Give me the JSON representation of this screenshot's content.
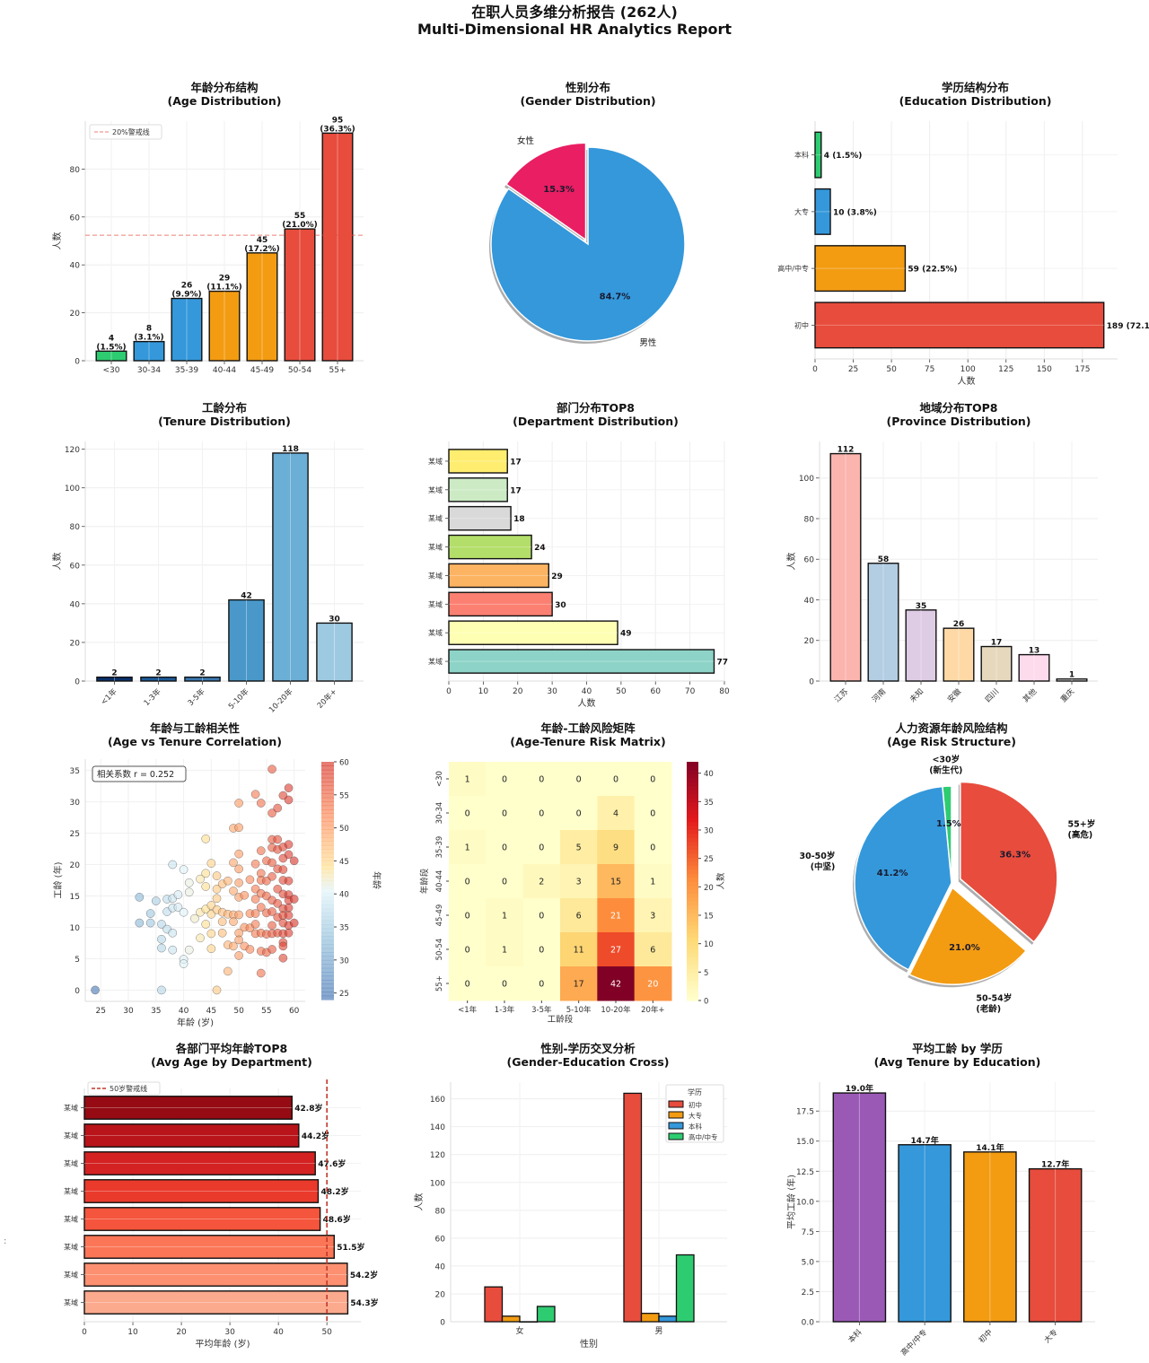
{
  "suptitle": {
    "line1": "在职人员多维分析报告 (262人)",
    "line2": "Multi-Dimensional HR Analytics Report"
  },
  "stray_mark": ":",
  "chart_data": [
    {
      "id": "age",
      "type": "bar",
      "title": "年龄分布结构",
      "subtitle": "(Age Distribution)",
      "xlabel": "",
      "ylabel": "人数",
      "categories": [
        "<30",
        "30-34",
        "35-39",
        "40-44",
        "45-49",
        "50-54",
        "55+"
      ],
      "values": [
        4,
        8,
        26,
        29,
        45,
        55,
        95
      ],
      "data_labels": [
        "4\n(1.5%)",
        "8\n(3.1%)",
        "26\n(9.9%)",
        "29\n(11.1%)",
        "45\n(17.2%)",
        "55\n(21.0%)",
        "95\n(36.3%)"
      ],
      "colors": [
        "#2ecc71",
        "#3498db",
        "#3498db",
        "#f39c12",
        "#f39c12",
        "#e74c3c",
        "#e74c3c"
      ],
      "ylim": [
        0,
        100
      ],
      "yticks": [
        0,
        20,
        40,
        60,
        80
      ],
      "reference_line": {
        "value": 52.4,
        "label": "20%警戒线",
        "color": "#e74c3c"
      },
      "legend": "top-left",
      "grid": true
    },
    {
      "id": "gender",
      "type": "pie",
      "title": "性别分布",
      "subtitle": "(Gender Distribution)",
      "labels": [
        "女性",
        "男性"
      ],
      "values": [
        15.3,
        84.7
      ],
      "pct_labels": [
        "15.3%",
        "84.7%"
      ],
      "colors": [
        "#e91e63",
        "#3498db"
      ],
      "explode": [
        0.05,
        0
      ],
      "start_angle": 90,
      "shadow": true
    },
    {
      "id": "education",
      "type": "bar",
      "orientation": "horizontal",
      "title": "学历结构分布",
      "subtitle": "(Education Distribution)",
      "xlabel": "人数",
      "ylabel": "",
      "categories": [
        "初中",
        "高中/中专",
        "大专",
        "本科"
      ],
      "values": [
        189,
        59,
        10,
        4
      ],
      "data_labels": [
        "189 (72.1%)",
        "59 (22.5%)",
        "10 (3.8%)",
        "4 (1.5%)"
      ],
      "colors": [
        "#e74c3c",
        "#f39c12",
        "#3498db",
        "#2ecc71"
      ],
      "xlim": [
        0,
        198
      ],
      "xticks": [
        0,
        25,
        50,
        75,
        100,
        125,
        150,
        175
      ],
      "grid": true
    },
    {
      "id": "tenure",
      "type": "bar",
      "title": "工龄分布",
      "subtitle": "(Tenure Distribution)",
      "xlabel": "",
      "ylabel": "人数",
      "categories": [
        "<1年",
        "1-3年",
        "3-5年",
        "5-10年",
        "10-20年",
        "20年+"
      ],
      "values": [
        2,
        2,
        2,
        42,
        118,
        30
      ],
      "data_labels": [
        "2",
        "2",
        "2",
        "42",
        "118",
        "30"
      ],
      "colors": [
        "#08306b",
        "#1c5a99",
        "#3a78b0",
        "#4a98c9",
        "#6baed6",
        "#9ecae1"
      ],
      "ylim": [
        0,
        124
      ],
      "yticks": [
        0,
        20,
        40,
        60,
        80,
        100,
        120
      ],
      "grid": true
    },
    {
      "id": "department",
      "type": "bar",
      "orientation": "horizontal",
      "title": "部门分布TOP8",
      "subtitle": "(Department Distribution)",
      "xlabel": "人数",
      "ylabel": "",
      "categories": [
        "某域",
        "某域",
        "某域",
        "某域",
        "某域",
        "某域",
        "某域",
        "某域"
      ],
      "values": [
        77,
        49,
        30,
        29,
        24,
        18,
        17,
        17
      ],
      "data_labels": [
        "77",
        "49",
        "30",
        "29",
        "24",
        "18",
        "17",
        "17"
      ],
      "colors": [
        "#8dd3c7",
        "#ffffb3",
        "#fb8072",
        "#fdb462",
        "#b3de69",
        "#d9d9d9",
        "#ccebc5",
        "#ffed6f"
      ],
      "xlim": [
        0,
        80
      ],
      "xticks": [
        0,
        10,
        20,
        30,
        40,
        50,
        60,
        70,
        80
      ],
      "grid": true
    },
    {
      "id": "province",
      "type": "bar",
      "title": "地域分布TOP8",
      "subtitle": "(Province Distribution)",
      "xlabel": "",
      "ylabel": "人数",
      "categories": [
        "江苏",
        "河南",
        "未知",
        "安徽",
        "四川",
        "其他",
        "重庆"
      ],
      "values": [
        112,
        58,
        35,
        26,
        17,
        13,
        1
      ],
      "data_labels": [
        "112",
        "58",
        "35",
        "26",
        "17",
        "13",
        "1"
      ],
      "colors": [
        "#fbb4ae",
        "#b3cde3",
        "#decbe4",
        "#fed9a6",
        "#e5d8bd",
        "#fddaec",
        "#f2f2f2"
      ],
      "ylim": [
        0,
        118
      ],
      "yticks": [
        0,
        20,
        40,
        60,
        80,
        100
      ],
      "grid": true
    },
    {
      "id": "scatter",
      "type": "scatter",
      "title": "年龄与工龄相关性",
      "subtitle": "(Age vs Tenure Correlation)",
      "xlabel": "年龄 (岁)",
      "ylabel": "工龄 (年)",
      "xlim": [
        22.2,
        62
      ],
      "ylim": [
        -1.8,
        36.8
      ],
      "xticks": [
        25,
        30,
        35,
        40,
        45,
        50,
        55,
        60
      ],
      "yticks": [
        0,
        5,
        10,
        15,
        20,
        25,
        30,
        35
      ],
      "annotation": "相关系数 r = 0.252",
      "colorbar": {
        "label": "年龄",
        "range": [
          24,
          60
        ],
        "ticks": [
          25,
          30,
          35,
          40,
          45,
          50,
          55,
          60
        ],
        "cmap": "RdYlBu_r"
      },
      "points": [
        [
          24,
          0
        ],
        [
          32,
          14.8
        ],
        [
          32,
          10.7
        ],
        [
          34,
          12.2
        ],
        [
          34,
          10.7
        ],
        [
          35,
          14.2
        ],
        [
          36,
          10.5
        ],
        [
          36,
          8.1
        ],
        [
          36,
          6.7
        ],
        [
          36,
          0
        ],
        [
          37,
          14.5
        ],
        [
          37,
          12.5
        ],
        [
          37,
          9.7
        ],
        [
          38,
          20
        ],
        [
          38,
          14.6
        ],
        [
          38,
          13.1
        ],
        [
          38,
          9.1
        ],
        [
          38,
          6.4
        ],
        [
          39,
          15.2
        ],
        [
          39,
          13.2
        ],
        [
          40,
          19.2
        ],
        [
          40,
          12.4
        ],
        [
          40,
          4.9
        ],
        [
          40,
          4.2
        ],
        [
          41,
          17.1
        ],
        [
          41,
          15.6
        ],
        [
          41,
          6.4
        ],
        [
          42,
          11.4
        ],
        [
          43,
          17.7
        ],
        [
          43,
          12.4
        ],
        [
          43,
          8.3
        ],
        [
          44,
          24.1
        ],
        [
          44,
          18.6
        ],
        [
          44,
          16.5
        ],
        [
          44,
          12.9
        ],
        [
          44,
          10.5
        ],
        [
          45,
          20.2
        ],
        [
          45,
          13.5
        ],
        [
          45,
          12.1
        ],
        [
          45,
          9
        ],
        [
          45,
          6.6
        ],
        [
          46,
          18.2
        ],
        [
          46,
          16.1
        ],
        [
          46,
          14.6
        ],
        [
          46,
          12.8
        ],
        [
          46,
          0
        ],
        [
          47,
          16.9
        ],
        [
          47,
          12.4
        ],
        [
          47,
          10.9
        ],
        [
          47,
          9.1
        ],
        [
          48,
          17.4
        ],
        [
          48,
          12.1
        ],
        [
          48,
          7.2
        ],
        [
          48,
          3
        ],
        [
          49,
          25.8
        ],
        [
          49,
          20.3
        ],
        [
          49,
          15.8
        ],
        [
          49,
          12
        ],
        [
          49,
          10.9
        ],
        [
          49,
          7
        ],
        [
          50,
          29.8
        ],
        [
          50,
          25.9
        ],
        [
          50,
          21.7
        ],
        [
          50,
          19.3
        ],
        [
          50,
          17.1
        ],
        [
          50,
          14.8
        ],
        [
          50,
          12
        ],
        [
          50,
          9.1
        ],
        [
          50,
          8
        ],
        [
          50,
          5.5
        ],
        [
          51,
          15.1
        ],
        [
          51,
          10
        ],
        [
          51,
          7
        ],
        [
          52,
          17.6
        ],
        [
          52,
          12.2
        ],
        [
          52,
          9.9
        ],
        [
          52,
          6.5
        ],
        [
          53,
          31.2
        ],
        [
          53,
          20.1
        ],
        [
          53,
          16.1
        ],
        [
          53,
          14.5
        ],
        [
          53,
          12.2
        ],
        [
          53,
          10.5
        ],
        [
          53,
          9
        ],
        [
          54,
          29.8
        ],
        [
          54,
          22.2
        ],
        [
          54,
          18.6
        ],
        [
          54,
          17.5
        ],
        [
          54,
          15.4
        ],
        [
          54,
          13.2
        ],
        [
          54,
          9.1
        ],
        [
          54,
          6.2
        ],
        [
          54,
          2.7
        ],
        [
          55,
          20.6
        ],
        [
          55,
          17.4
        ],
        [
          55,
          15
        ],
        [
          55,
          12.3
        ],
        [
          55,
          8.9
        ],
        [
          55,
          6
        ],
        [
          56,
          35.2
        ],
        [
          56,
          28.2
        ],
        [
          56,
          24
        ],
        [
          56,
          22.7
        ],
        [
          56,
          20.3
        ],
        [
          56,
          18.1
        ],
        [
          56,
          14.3
        ],
        [
          56,
          12.5
        ],
        [
          56,
          10.3
        ],
        [
          56,
          9
        ],
        [
          56,
          6.5
        ],
        [
          57,
          29
        ],
        [
          57,
          24
        ],
        [
          57,
          22.4
        ],
        [
          57,
          19.3
        ],
        [
          57,
          16.1
        ],
        [
          57,
          13.8
        ],
        [
          57,
          11.6
        ],
        [
          57,
          9.1
        ],
        [
          58,
          31
        ],
        [
          58,
          22.8
        ],
        [
          58,
          21
        ],
        [
          58,
          19.2
        ],
        [
          58,
          17.5
        ],
        [
          58,
          15.3
        ],
        [
          58,
          13
        ],
        [
          58,
          11.9
        ],
        [
          58,
          10.7
        ],
        [
          58,
          9
        ],
        [
          58,
          7.6
        ],
        [
          58,
          7
        ],
        [
          58,
          5.1
        ],
        [
          59,
          32.2
        ],
        [
          59,
          30.3
        ],
        [
          59,
          23.2
        ],
        [
          59,
          21.6
        ],
        [
          59,
          17.4
        ],
        [
          59,
          15.2
        ],
        [
          59,
          14.3
        ],
        [
          59,
          13.1
        ],
        [
          59,
          11.9
        ],
        [
          59,
          10.3
        ],
        [
          59,
          9.1
        ],
        [
          60,
          20.6
        ],
        [
          60,
          14.5
        ],
        [
          60,
          10.7
        ]
      ],
      "grid": true
    },
    {
      "id": "risk_matrix",
      "type": "heatmap",
      "title": "年龄-工龄风险矩阵",
      "subtitle": "(Age-Tenure Risk Matrix)",
      "xlabel": "工龄段",
      "ylabel": "年龄段",
      "x": [
        "<1年",
        "1-3年",
        "3-5年",
        "5-10年",
        "10-20年",
        "20年+"
      ],
      "y": [
        "<30",
        "30-34",
        "35-39",
        "40-44",
        "45-49",
        "50-54",
        "55+"
      ],
      "values": [
        [
          1,
          0,
          0,
          0,
          0,
          0
        ],
        [
          0,
          0,
          0,
          0,
          4,
          0
        ],
        [
          1,
          0,
          0,
          5,
          9,
          0
        ],
        [
          0,
          0,
          2,
          3,
          15,
          1
        ],
        [
          0,
          1,
          0,
          6,
          21,
          3
        ],
        [
          0,
          1,
          0,
          11,
          27,
          6
        ],
        [
          0,
          0,
          0,
          17,
          42,
          20
        ]
      ],
      "colorbar": {
        "label": "人数",
        "range": [
          0,
          42
        ],
        "ticks": [
          0,
          5,
          10,
          15,
          20,
          25,
          30,
          35,
          40
        ],
        "cmap": "YlOrRd"
      }
    },
    {
      "id": "age_risk",
      "type": "pie",
      "title": "人力资源年龄风险结构",
      "subtitle": "(Age Risk Structure)",
      "labels": [
        "<30岁\n(新生代)",
        "30-50岁\n(中坚)",
        "50-54岁\n(老龄)",
        "55+岁\n(高危)"
      ],
      "values": [
        1.5,
        41.2,
        21.0,
        36.3
      ],
      "pct_labels": [
        "1.5%",
        "41.2%",
        "21.0%",
        "36.3%"
      ],
      "colors": [
        "#2ecc71",
        "#3498db",
        "#f39c12",
        "#e74c3c"
      ],
      "explode": [
        0,
        0,
        0.05,
        0.1
      ],
      "start_angle": 90,
      "shadow": true
    },
    {
      "id": "avg_age_dept",
      "type": "bar",
      "orientation": "horizontal",
      "title": "各部门平均年龄TOP8",
      "subtitle": "(Avg Age by Department)",
      "xlabel": "平均年龄 (岁)",
      "ylabel": "",
      "categories": [
        "某域",
        "某域",
        "某域",
        "某域",
        "某域",
        "某域",
        "某域",
        "某域"
      ],
      "values": [
        54.3,
        54.2,
        51.5,
        48.6,
        48.2,
        47.6,
        44.2,
        42.8
      ],
      "data_labels": [
        "54.3岁",
        "54.2岁",
        "51.5岁",
        "48.6岁",
        "48.2岁",
        "47.6岁",
        "44.2岁",
        "42.8岁"
      ],
      "colors": [
        "#fcaa8e",
        "#fc9070",
        "#fb7656",
        "#f5553c",
        "#ea3a2c",
        "#d42222",
        "#b81419",
        "#960b13"
      ],
      "xlim": [
        0,
        57
      ],
      "xticks": [
        0,
        10,
        20,
        30,
        40,
        50
      ],
      "reference_line": {
        "value": 50,
        "label": "50岁警戒线",
        "color": "#c0392b"
      },
      "legend": "top-left",
      "grid": true
    },
    {
      "id": "gender_edu",
      "type": "bar",
      "title": "性别-学历交叉分析",
      "subtitle": "(Gender-Education Cross)",
      "xlabel": "性别",
      "ylabel": "人数",
      "categories": [
        "女",
        "男"
      ],
      "series": [
        {
          "name": "初中",
          "values": [
            25,
            164
          ],
          "color": "#e74c3c"
        },
        {
          "name": "大专",
          "values": [
            4,
            6
          ],
          "color": "#f39c12"
        },
        {
          "name": "本科",
          "values": [
            0,
            4
          ],
          "color": "#3498db"
        },
        {
          "name": "高中/中专",
          "values": [
            11,
            48
          ],
          "color": "#2ecc71"
        }
      ],
      "legend_title": "学历",
      "legend": "top-right",
      "ylim": [
        0,
        172
      ],
      "yticks": [
        0,
        20,
        40,
        60,
        80,
        100,
        120,
        140,
        160
      ],
      "grid": true
    },
    {
      "id": "avg_tenure_edu",
      "type": "bar",
      "title": "平均工龄 by 学历",
      "subtitle": "(Avg Tenure by Education)",
      "xlabel": "",
      "ylabel": "平均工龄 (年)",
      "categories": [
        "本科",
        "高中/中专",
        "初中",
        "大专"
      ],
      "values": [
        19.0,
        14.7,
        14.1,
        12.7
      ],
      "data_labels": [
        "19.0年",
        "14.7年",
        "14.1年",
        "12.7年"
      ],
      "colors": [
        "#9b59b6",
        "#3498db",
        "#f39c12",
        "#e74c3c"
      ],
      "ylim": [
        0,
        19.9
      ],
      "yticks": [
        0,
        2.5,
        5,
        7.5,
        10,
        12.5,
        15,
        17.5
      ],
      "ytick_format": "1f",
      "grid": true
    }
  ]
}
